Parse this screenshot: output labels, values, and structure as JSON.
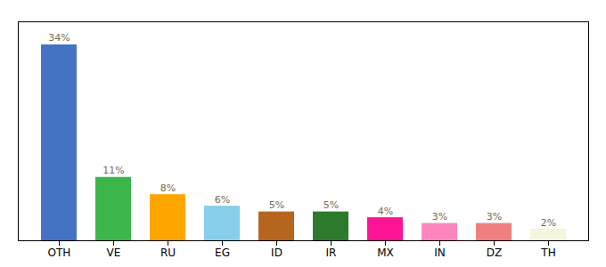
{
  "chart_data": {
    "type": "bar",
    "categories": [
      "OTH",
      "VE",
      "RU",
      "EG",
      "ID",
      "IR",
      "MX",
      "IN",
      "DZ",
      "TH"
    ],
    "values": [
      34,
      11,
      8,
      6,
      5,
      5,
      4,
      3,
      3,
      2
    ],
    "value_labels": [
      "34%",
      "11%",
      "8%",
      "6%",
      "5%",
      "5%",
      "4%",
      "3%",
      "3%",
      "2%"
    ],
    "colors": [
      "#4472c4",
      "#3cb54a",
      "#ffa500",
      "#87ceeb",
      "#b5651d",
      "#2d7a2d",
      "#ff1493",
      "#ff85c0",
      "#f08080",
      "#f5f5dc"
    ],
    "ylim": [
      0,
      38
    ],
    "yticks": [],
    "tick_labels": "x",
    "data_labels": true
  }
}
